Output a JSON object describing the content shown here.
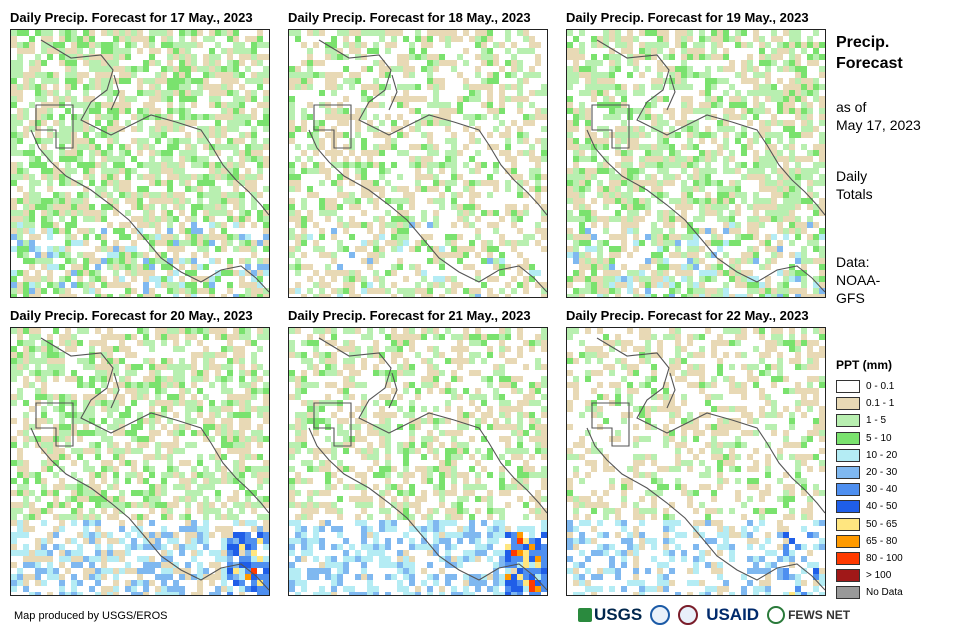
{
  "panels": [
    {
      "title": "Daily Precip. Forecast for 17 May., 2023",
      "wet": 0.55,
      "heavy": 0.04,
      "east_heavy": 0.0
    },
    {
      "title": "Daily Precip. Forecast for 18 May., 2023",
      "wet": 0.3,
      "heavy": 0.01,
      "east_heavy": 0.0
    },
    {
      "title": "Daily Precip. Forecast for 19 May., 2023",
      "wet": 0.5,
      "heavy": 0.03,
      "east_heavy": 0.0
    },
    {
      "title": "Daily Precip. Forecast for 20 May., 2023",
      "wet": 0.45,
      "heavy": 0.1,
      "east_heavy": 0.6
    },
    {
      "title": "Daily Precip. Forecast for 21 May., 2023",
      "wet": 0.35,
      "heavy": 0.12,
      "east_heavy": 0.8
    },
    {
      "title": "Daily Precip. Forecast for 22 May., 2023",
      "wet": 0.25,
      "heavy": 0.08,
      "east_heavy": 0.2
    }
  ],
  "side": {
    "title_line1": "Precip.",
    "title_line2": "Forecast",
    "asof_line1": "as of",
    "asof_line2": "May 17, 2023",
    "totals_line1": "Daily",
    "totals_line2": "Totals",
    "data_line1": "Data:",
    "data_line2": "NOAA-",
    "data_line3": "GFS"
  },
  "legend": {
    "title": "PPT (mm)",
    "items": [
      {
        "label": "0 - 0.1",
        "color": "#ffffff"
      },
      {
        "label": "0.1 - 1",
        "color": "#e8d9b5"
      },
      {
        "label": "1 - 5",
        "color": "#b8efb0"
      },
      {
        "label": "5 - 10",
        "color": "#7ae26e"
      },
      {
        "label": "10 - 20",
        "color": "#b4ecf4"
      },
      {
        "label": "20 - 30",
        "color": "#7fb8f0"
      },
      {
        "label": "30 - 40",
        "color": "#4e8ff0"
      },
      {
        "label": "40 - 50",
        "color": "#1f5ee8"
      },
      {
        "label": "50 - 65",
        "color": "#ffe680"
      },
      {
        "label": "65 - 80",
        "color": "#ff9a00"
      },
      {
        "label": "80 - 100",
        "color": "#ff3a00"
      },
      {
        "label": "> 100",
        "color": "#a01818"
      },
      {
        "label": "No Data",
        "color": "#999999"
      }
    ]
  },
  "credit": "Map produced by USGS/EROS",
  "logos": {
    "usgs": "USGS",
    "usaid": "USAID",
    "fews": "FEWS NET"
  }
}
